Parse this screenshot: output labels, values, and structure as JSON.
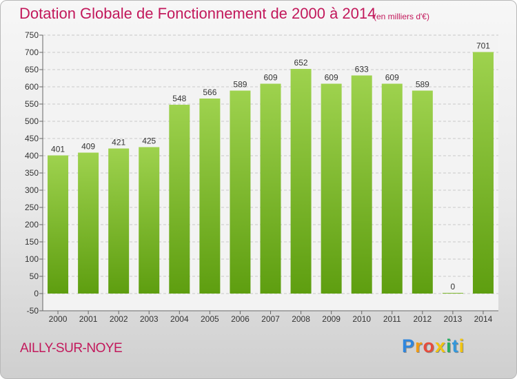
{
  "chart_data": {
    "type": "bar",
    "title": "Dotation Globale de Fonctionnement de 2000 à 2014",
    "subtitle": "(en milliers d'€)",
    "categories": [
      "2000",
      "2001",
      "2002",
      "2003",
      "2004",
      "2005",
      "2006",
      "2007",
      "2008",
      "2009",
      "2010",
      "2011",
      "2012",
      "2013",
      "2014"
    ],
    "values": [
      401,
      409,
      421,
      425,
      548,
      566,
      589,
      609,
      652,
      609,
      633,
      609,
      589,
      0,
      701
    ],
    "ylim": [
      -50,
      750
    ],
    "yticks": [
      750,
      700,
      650,
      600,
      550,
      500,
      450,
      400,
      350,
      300,
      250,
      200,
      150,
      100,
      50,
      0,
      -50
    ],
    "grid": true,
    "xlabel": "",
    "ylabel": ""
  },
  "commune": "AILLY-SUR-NOYE",
  "logo": {
    "letters": [
      "P",
      "r",
      "o",
      "x",
      "i",
      "t",
      "i"
    ],
    "colors": [
      "#2e86de",
      "#f39c12",
      "#e74c3c",
      "#f1c40f",
      "#27ae60",
      "#3498db",
      "#f1c40f"
    ]
  },
  "colors": {
    "title": "#c2185b",
    "bar_top": "#9ed24e",
    "bar_bottom": "#5e9e10",
    "grid": "#c8c8c8",
    "axis_text": "#333333"
  }
}
